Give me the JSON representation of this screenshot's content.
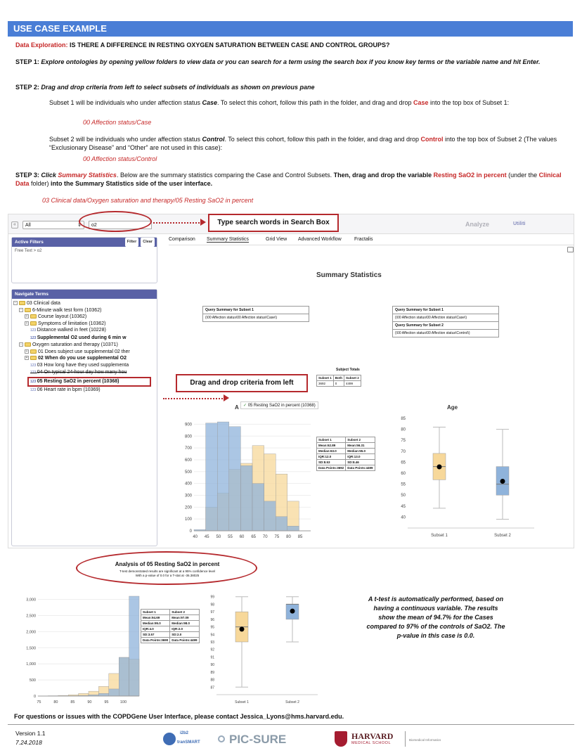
{
  "banner": "USE CASE EXAMPLE",
  "exploration": {
    "label": "Data Exploration:",
    "question": "IS THERE A DIFFERENCE IN RESTING OXYGEN SATURATION BETWEEN CASE AND CONTROL GROUPS?"
  },
  "step1": {
    "label": "STEP 1:",
    "text": "Explore ontologies by opening yellow folders to view data or you can search for a term using the search box if you know key terms or the variable name and hit Enter."
  },
  "step2": {
    "label": "STEP 2:",
    "text": "Drag and drop criteria from left to select subsets of individuals as shown on previous pane"
  },
  "subset1": {
    "a": "Subset 1 will be individuals who under affection status ",
    "case": "Case",
    "b": ". To select this cohort, follow this path in the folder, and drag and drop ",
    "case2": "Case",
    "c": " into the top box of Subset 1:",
    "path": "00 Affection status/Case"
  },
  "subset2": {
    "a": "Subset 2 will be individuals who under affection status ",
    "control": "Control",
    "b": ". To select this cohort, follow this path in the folder, and drag and drop ",
    "control2": "Control",
    "c": " into the top box of Subset 2 (The values “Exclusionary Disease” and “Other” are not used in this case):",
    "path": "00 Affection status/Control"
  },
  "step3": {
    "label": "STEP 3:",
    "click": "Click ",
    "summary": "Summary Statistics",
    "a": ". Below are the summary statistics comparing the Case and Control Subsets. ",
    "then": "Then, drag and drop the variable ",
    "var": "Resting SaO2 in percent",
    "under": " (under the ",
    "folder": "Clinical Data",
    "folder_end": " folder) ",
    "into": "into the Summary Statistics side of the user interface.",
    "path": "03 Clinical data/Oxygen saturation and therapy/05 Resting SaO2 in percent"
  },
  "app": {
    "nav": "«",
    "select": "All",
    "search_value": "o2",
    "analyze": "Analyze",
    "utilities": "Utiliti",
    "tabs": [
      "Comparison",
      "Summary Statistics",
      "Grid View",
      "Advanced Workflow",
      "Fractalis"
    ],
    "active_filters": "Active Filters",
    "filter_btn": "Filter",
    "clear_btn": "Clear",
    "free_text": "Free Text > o2",
    "navigate_terms": "Navigate Terms",
    "tree": [
      "03 Clinical data",
      "6-Minute walk test form (10362)",
      "Course layout (10362)",
      "Symptoms of limitation (10362)",
      "Distance walked in feet (10228)",
      "Supplemental O2 used during 6 min w",
      "Oxygen saturation and therapy (10371)",
      "01 Does subject use supplemental 02 ther",
      "02 When do you use supplemental O2",
      "03 How long have they used supplementa",
      "04 On typical 24-hour day how many hou",
      "05 Resting SaO2 in percent (10368)",
      "06 Heart rate in bpm (10369)"
    ],
    "summary_title": "Summary Statistics",
    "q1_head": "Query Summary for Subset 1",
    "q1_val": "(\\00 Affection status\\00 Affection status\\Case\\)",
    "q2_head": "Query Summary for Subset 2",
    "q2_val": "(\\00 Affection status\\00 Affection status\\Control\\)",
    "subject_totals": "Subject Totals",
    "totals_head": [
      "Subset 1",
      "Both",
      "Subset 2"
    ],
    "totals_vals": [
      "3692",
      "0",
      "4499"
    ],
    "drag_chip": "05 Resting SaO2 in percent (10368)",
    "age_title": "Age",
    "age_partial": "A"
  },
  "callouts": {
    "search": "Type search words in Search Box",
    "drag": "Drag and drop criteria from left"
  },
  "stats1": {
    "head": [
      "Subset 1",
      "Subset 2"
    ],
    "rows": [
      [
        "Mean:62.89",
        "Mean:56.31"
      ],
      [
        "Median:63.0",
        "Median:55.0"
      ],
      [
        "IQR:12.0",
        "IQR:13.0"
      ],
      [
        "SD:8.53",
        "SD:8.46"
      ],
      [
        "Data Points:3692",
        "Data Points:4499"
      ]
    ]
  },
  "analysis": {
    "title": "Analysis of 05 Resting SaO2 in percent",
    "sub1": "T-test demonstrated results are significant at a 95% confidence level",
    "sub2": "With a p-value of 0.0 for a T-stat at -36.38025"
  },
  "stats2": {
    "head": [
      "Subset 1",
      "Subset 2"
    ],
    "rows": [
      [
        "Mean:94.69",
        "Mean:97.09"
      ],
      [
        "Median:95.0",
        "Median:98.0"
      ],
      [
        "IQR:4.0",
        "IQR:2.0"
      ],
      [
        "SD:3.57",
        "SD:2.0"
      ],
      [
        "Data Points:3690",
        "Data Points:4499"
      ]
    ]
  },
  "ttest_note": "A t-test is automatically performed, based on having a continuous variable. The results show the mean of 94.7% for the Cases compared to 97% of the controls of SaO2. The p-value in this case is 0.0.",
  "contact": "For questions or issues with the COPDGene User Interface, please contact Jessica_Lyons@hms.harvard.edu.",
  "version": "Version 1.1",
  "date": "7.24.2018",
  "logos": {
    "i2b2": "i2b2",
    "transmart": "tranSMART",
    "picsure": "PIC-SURE",
    "harvard": "HARVARD",
    "hms": "MEDICAL SCHOOL",
    "dbmi": "Biomedical Informatics"
  },
  "chart_data": [
    {
      "type": "bar",
      "title": "Age",
      "x_ticks": [
        "40",
        "45",
        "50",
        "55",
        "60",
        "65",
        "70",
        "75",
        "80",
        "85"
      ],
      "ylim": [
        0,
        950
      ],
      "y_ticks": [
        0,
        100,
        200,
        300,
        400,
        500,
        600,
        700,
        800,
        900
      ],
      "bins": [
        40,
        45,
        50,
        55,
        60,
        65,
        70,
        75,
        80,
        85
      ],
      "series": [
        {
          "name": "Subset 1",
          "color": "#f7d89a",
          "values": [
            0,
            200,
            320,
            520,
            570,
            720,
            650,
            480,
            250,
            0
          ]
        },
        {
          "name": "Subset 2",
          "color": "#8fb3db",
          "values": [
            10,
            910,
            920,
            880,
            550,
            400,
            250,
            120,
            40,
            0
          ]
        }
      ]
    },
    {
      "type": "box",
      "title": "Age",
      "categories": [
        "Subset 1",
        "Subset 2"
      ],
      "ylim": [
        35,
        85
      ],
      "y_ticks": [
        40,
        45,
        50,
        55,
        60,
        65,
        70,
        75,
        80,
        85
      ],
      "boxes": [
        {
          "name": "Subset 1",
          "q1": 57,
          "median": 63,
          "q3": 69,
          "min": 44,
          "max": 81,
          "mean": 62.89,
          "color": "#f7d89a"
        },
        {
          "name": "Subset 2",
          "q1": 50,
          "median": 55,
          "q3": 63,
          "min": 39,
          "max": 80,
          "mean": 56.31,
          "color": "#8fb3db"
        }
      ]
    },
    {
      "type": "bar",
      "title": "",
      "x_ticks": [
        "75",
        "80",
        "85",
        "90",
        "95",
        "100"
      ],
      "ylim": [
        0,
        3100
      ],
      "y_ticks": [
        0,
        500,
        1000,
        1500,
        2000,
        2500,
        3000
      ],
      "bins": [
        75,
        77.5,
        80,
        82.5,
        85,
        87.5,
        90,
        92.5,
        95,
        97.5
      ],
      "series": [
        {
          "name": "Subset 1",
          "color": "#f7d89a",
          "values": [
            5,
            10,
            20,
            40,
            80,
            150,
            300,
            700,
            1200,
            1150
          ]
        },
        {
          "name": "Subset 2",
          "color": "#8fb3db",
          "values": [
            0,
            0,
            5,
            10,
            20,
            40,
            80,
            220,
            1200,
            3100
          ]
        }
      ]
    },
    {
      "type": "box",
      "title": "",
      "categories": [
        "Subset 1",
        "Subset 2"
      ],
      "ylim": [
        86,
        100
      ],
      "y_ticks": [
        87,
        88,
        89,
        90,
        91,
        92,
        93,
        94,
        95,
        96,
        97,
        98,
        99
      ],
      "boxes": [
        {
          "name": "Subset 1",
          "q1": 93,
          "median": 95,
          "q3": 97,
          "min": 87,
          "max": 99,
          "mean": 94.69,
          "color": "#f7d89a"
        },
        {
          "name": "Subset 2",
          "q1": 96,
          "median": 98,
          "q3": 98,
          "min": 93,
          "max": 99,
          "mean": 97.09,
          "color": "#8fb3db"
        }
      ]
    }
  ]
}
